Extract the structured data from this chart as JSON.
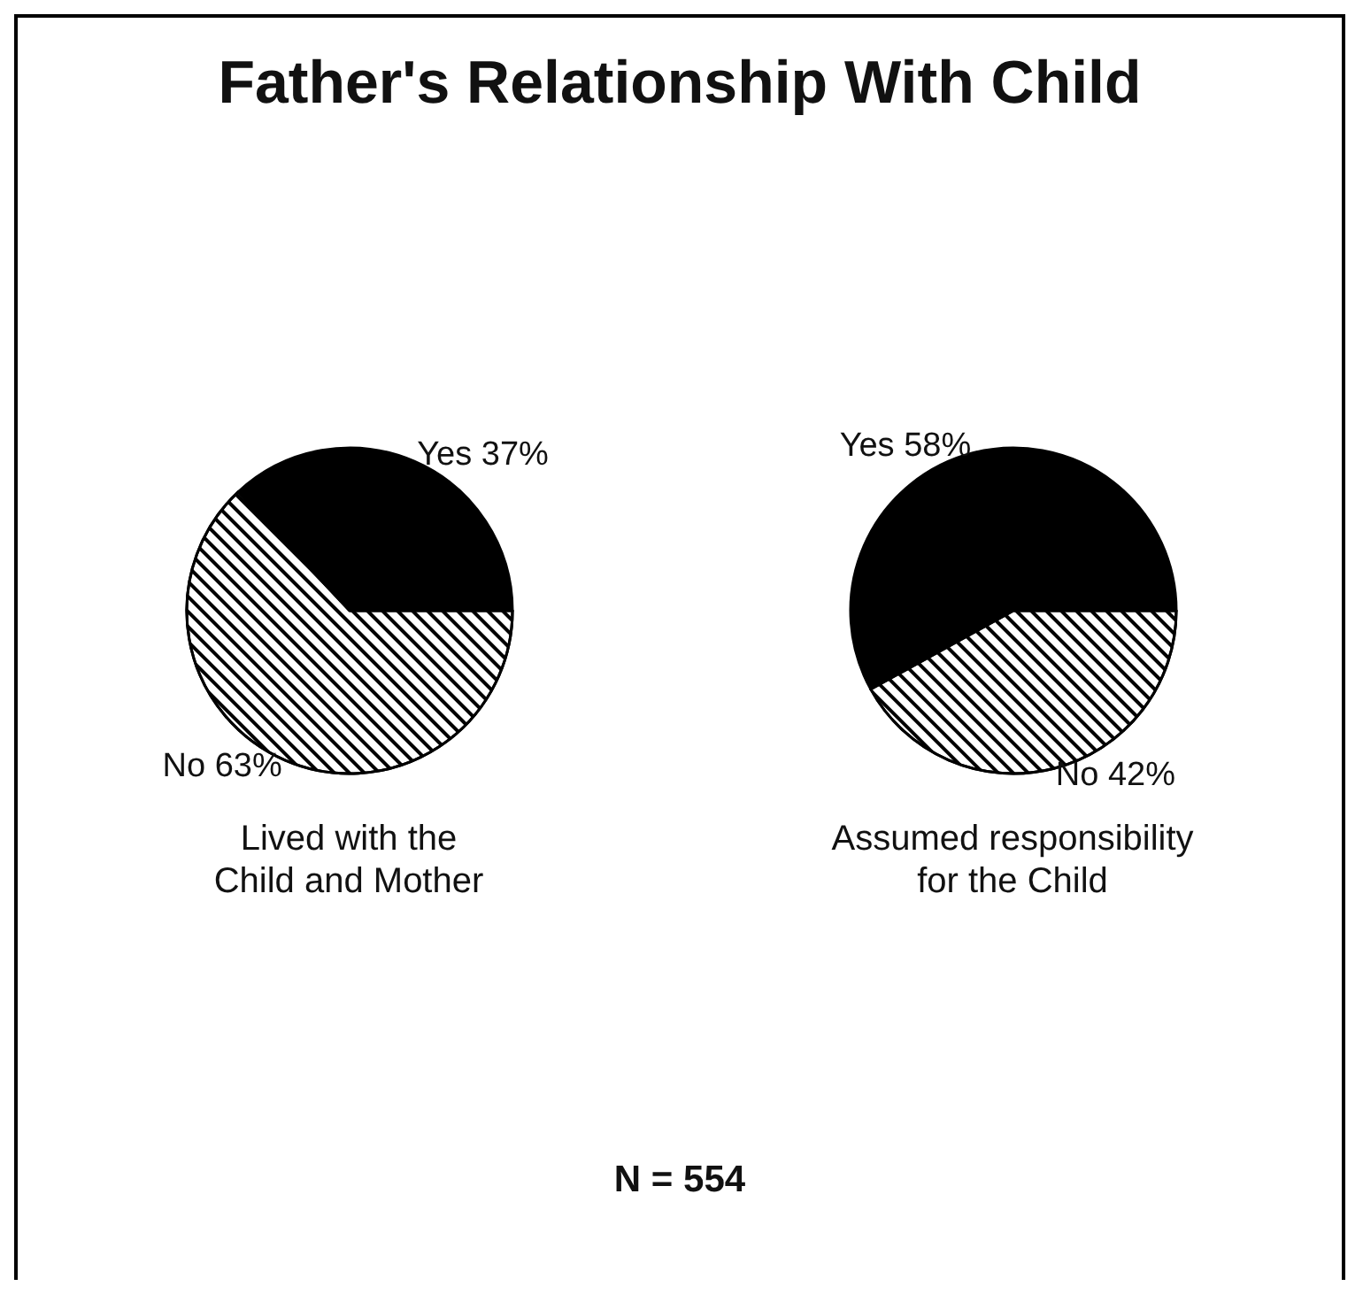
{
  "chart_data": [
    {
      "type": "pie",
      "title": "Father's Relationship With Child",
      "xlabel": "Lived with the\nChild and Mother",
      "categories": [
        "Yes",
        "No"
      ],
      "values": [
        37,
        63
      ],
      "colors": [
        "#000000",
        "#ffffff"
      ],
      "value_labels": [
        "37%",
        "63%"
      ]
    },
    {
      "type": "pie",
      "xlabel": "Assumed responsibility\nfor the Child",
      "categories": [
        "Yes",
        "No"
      ],
      "values": [
        58,
        42
      ],
      "colors": [
        "#000000",
        "#ffffff"
      ],
      "value_labels": [
        "58%",
        "42%"
      ],
      "annotations": [
        "N = 554"
      ]
    }
  ]
}
